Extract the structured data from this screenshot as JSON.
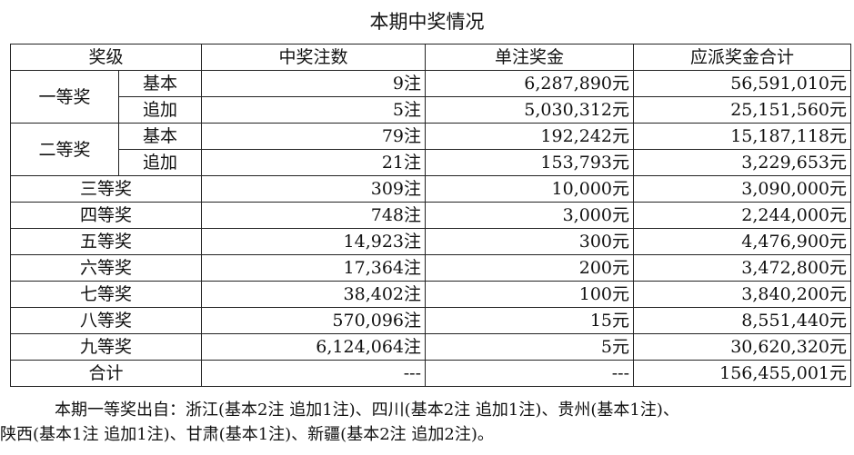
{
  "title": "本期中奖情况",
  "headers": {
    "level": "奖级",
    "count": "中奖注数",
    "single": "单注奖金",
    "total": "应派奖金合计"
  },
  "rows": [
    {
      "level": "一等奖",
      "sub": "基本",
      "count": "9注",
      "single": "6,287,890元",
      "total": "56,591,010元"
    },
    {
      "level": "一等奖",
      "sub": "追加",
      "count": "5注",
      "single": "5,030,312元",
      "total": "25,151,560元"
    },
    {
      "level": "二等奖",
      "sub": "基本",
      "count": "79注",
      "single": "192,242元",
      "total": "15,187,118元"
    },
    {
      "level": "二等奖",
      "sub": "追加",
      "count": "21注",
      "single": "153,793元",
      "total": "3,229,653元"
    },
    {
      "level": "三等奖",
      "count": "309注",
      "single": "10,000元",
      "total": "3,090,000元"
    },
    {
      "level": "四等奖",
      "count": "748注",
      "single": "3,000元",
      "total": "2,244,000元"
    },
    {
      "level": "五等奖",
      "count": "14,923注",
      "single": "300元",
      "total": "4,476,900元"
    },
    {
      "level": "六等奖",
      "count": "17,364注",
      "single": "200元",
      "total": "3,472,800元"
    },
    {
      "level": "七等奖",
      "count": "38,402注",
      "single": "100元",
      "total": "3,840,200元"
    },
    {
      "level": "八等奖",
      "count": "570,096注",
      "single": "15元",
      "total": "8,551,440元"
    },
    {
      "level": "九等奖",
      "count": "6,124,064注",
      "single": "5元",
      "total": "30,620,320元"
    },
    {
      "level": "合计",
      "count": "---",
      "single": "---",
      "total": "156,455,001元"
    }
  ],
  "note": {
    "line1": "本期一等奖出自：浙江(基本2注 追加1注)、四川(基本2注 追加1注)、贵州(基本1注)、",
    "line2": "陕西(基本1注 追加1注)、甘肃(基本1注)、新疆(基本2注 追加2注)。"
  }
}
